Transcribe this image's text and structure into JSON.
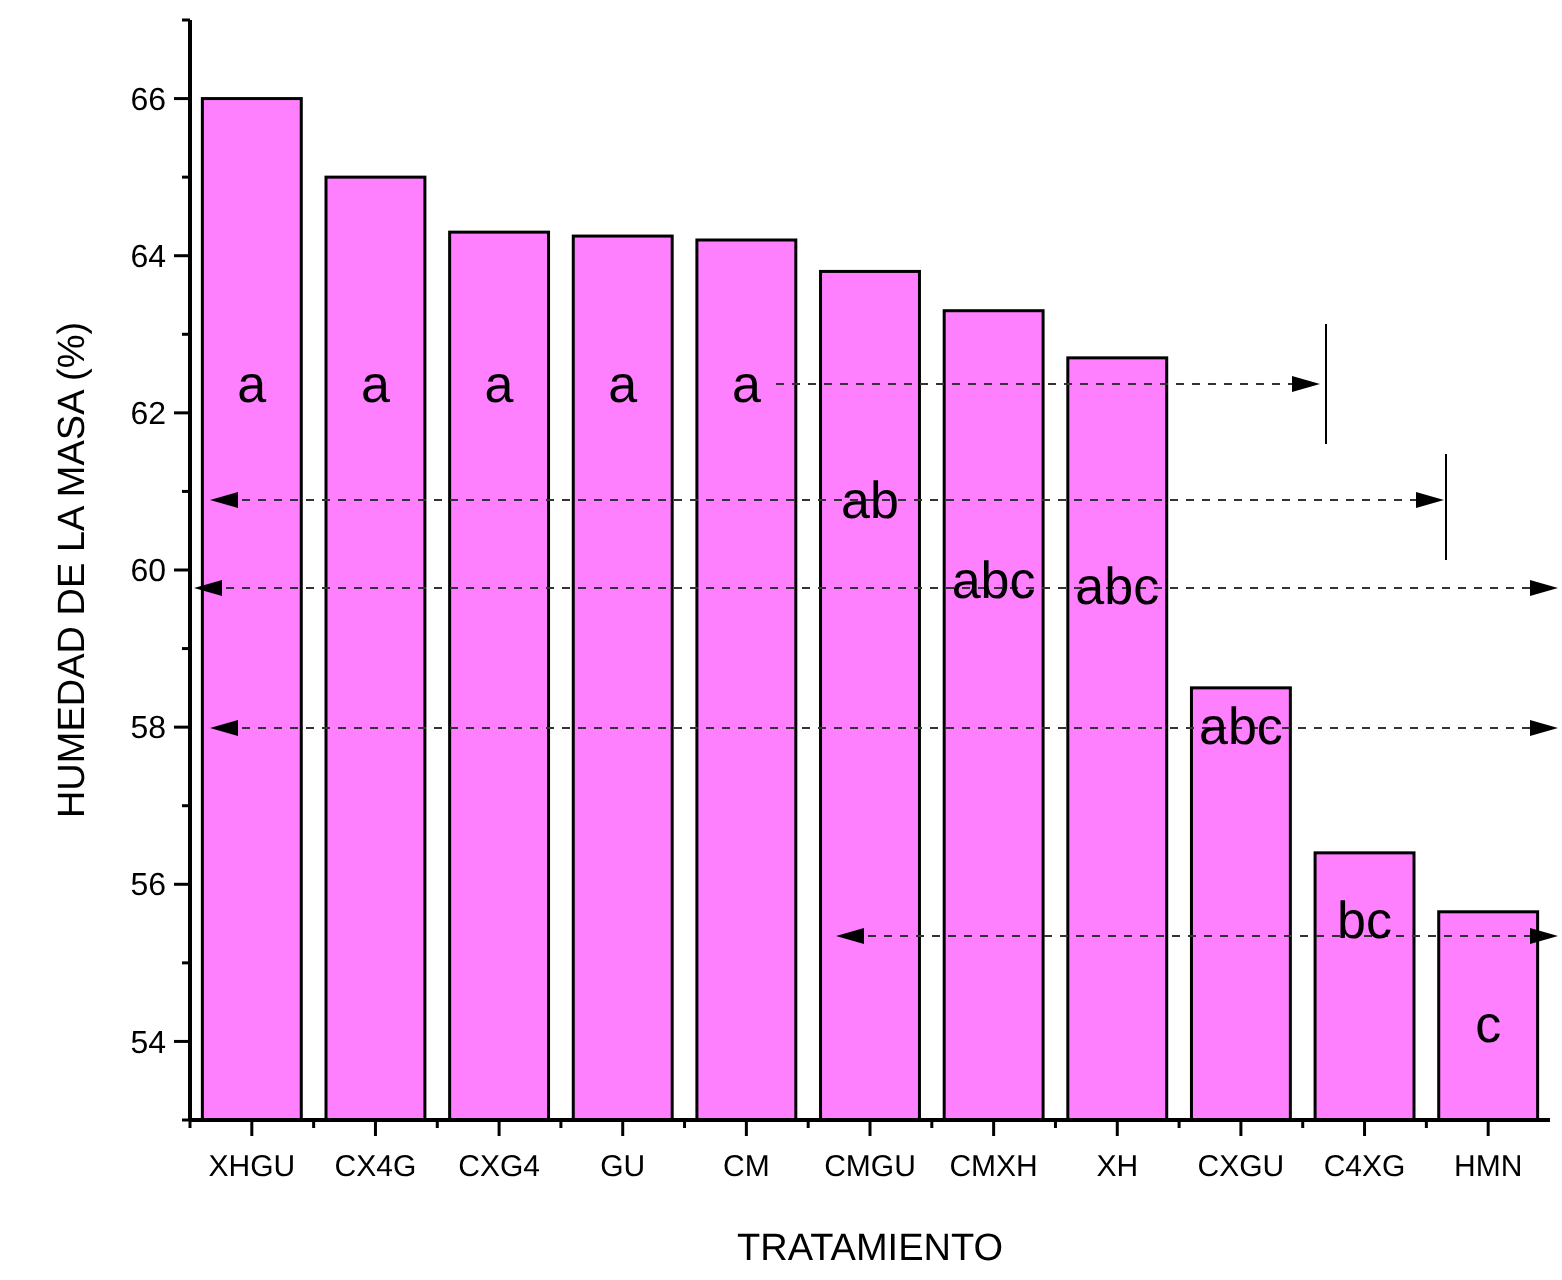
{
  "chart_data": {
    "type": "bar",
    "xlabel": "TRATAMIENTO",
    "ylabel": "HUMEDAD DE LA MASA (%)",
    "categories": [
      "XHGU",
      "CX4G",
      "CXG4",
      "GU",
      "CM",
      "CMGU",
      "CMXH",
      "XH",
      "CXGU",
      "C4XG",
      "HMN"
    ],
    "values": [
      66.0,
      65.0,
      64.3,
      64.25,
      64.2,
      63.8,
      63.3,
      62.7,
      58.5,
      56.4,
      55.65
    ],
    "color": "#ff80ff",
    "ylim": [
      53,
      67
    ],
    "yticks": [
      {
        "value": 53,
        "label": null
      },
      54,
      {
        "value": 55,
        "label": null
      },
      56,
      {
        "value": 57,
        "label": null
      },
      58,
      {
        "value": 59,
        "label": null
      },
      60,
      {
        "value": 61,
        "label": null
      },
      62,
      {
        "value": 63,
        "label": null
      },
      64,
      {
        "value": 65,
        "label": null
      },
      66,
      {
        "value": 67,
        "label": null
      }
    ],
    "annotations": [
      "a",
      "a",
      "a",
      "a",
      "a",
      "ab",
      "abc",
      "abc",
      "abc",
      "bc",
      "c"
    ]
  }
}
